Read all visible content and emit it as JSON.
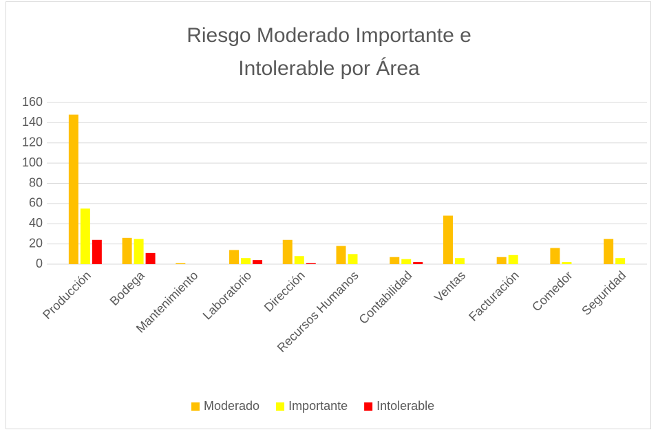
{
  "chart_data": {
    "type": "bar",
    "title": "Riesgo Moderado Importante e Intolerable por Área",
    "categories": [
      "Producción",
      "Bodega",
      "Mantenimiento",
      "Laboratorio",
      "Dirección",
      "Recursos Humanos",
      "Contabilidad",
      "Ventas",
      "Facturación",
      "Comedor",
      "Seguridad"
    ],
    "series": [
      {
        "name": "Moderado",
        "color": "#FFC000",
        "values": [
          148,
          26,
          1,
          14,
          24,
          18,
          7,
          48,
          7,
          16,
          25
        ]
      },
      {
        "name": "Importante",
        "color": "#FFFF00",
        "values": [
          55,
          25,
          0,
          6,
          8,
          10,
          5,
          6,
          9,
          2,
          6
        ]
      },
      {
        "name": "Intolerable",
        "color": "#FF0000",
        "values": [
          24,
          11,
          0,
          4,
          1,
          0,
          2,
          0,
          0,
          0,
          0
        ]
      }
    ],
    "ylim": [
      0,
      160
    ],
    "yticks": [
      0,
      20,
      40,
      60,
      80,
      100,
      120,
      140,
      160
    ],
    "grid": true,
    "legend": "bottom"
  }
}
